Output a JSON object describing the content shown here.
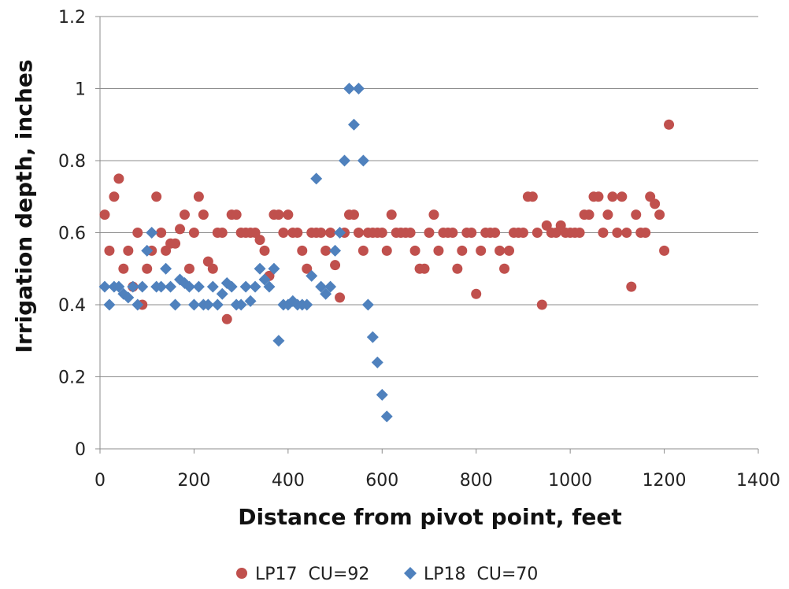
{
  "chart_data": {
    "type": "scatter",
    "xlabel": "Distance from pivot point, feet",
    "ylabel": "Irrigation depth, inches",
    "xlim": [
      0,
      1400
    ],
    "ylim": [
      0,
      1.2
    ],
    "x_ticks": [
      "0",
      "200",
      "400",
      "600",
      "800",
      "1000",
      "1200",
      "1400"
    ],
    "y_ticks": [
      "0",
      "0.2",
      "0.4",
      "0.6",
      "0.8",
      "1",
      "1.2"
    ],
    "grid": "horizontal",
    "legend_position": "bottom",
    "series": [
      {
        "name": "LP17  CU=92",
        "color": "#C0504D",
        "marker": "circle",
        "points": [
          [
            10,
            0.65
          ],
          [
            20,
            0.55
          ],
          [
            30,
            0.7
          ],
          [
            40,
            0.75
          ],
          [
            50,
            0.5
          ],
          [
            60,
            0.55
          ],
          [
            70,
            0.45
          ],
          [
            80,
            0.6
          ],
          [
            90,
            0.4
          ],
          [
            100,
            0.5
          ],
          [
            110,
            0.55
          ],
          [
            120,
            0.7
          ],
          [
            130,
            0.6
          ],
          [
            140,
            0.55
          ],
          [
            150,
            0.57
          ],
          [
            160,
            0.57
          ],
          [
            170,
            0.61
          ],
          [
            180,
            0.65
          ],
          [
            190,
            0.5
          ],
          [
            200,
            0.6
          ],
          [
            210,
            0.7
          ],
          [
            220,
            0.65
          ],
          [
            230,
            0.52
          ],
          [
            240,
            0.5
          ],
          [
            250,
            0.6
          ],
          [
            260,
            0.6
          ],
          [
            270,
            0.36
          ],
          [
            280,
            0.65
          ],
          [
            290,
            0.65
          ],
          [
            300,
            0.6
          ],
          [
            310,
            0.6
          ],
          [
            320,
            0.6
          ],
          [
            330,
            0.6
          ],
          [
            340,
            0.58
          ],
          [
            350,
            0.55
          ],
          [
            360,
            0.48
          ],
          [
            370,
            0.65
          ],
          [
            380,
            0.65
          ],
          [
            390,
            0.6
          ],
          [
            400,
            0.65
          ],
          [
            410,
            0.6
          ],
          [
            420,
            0.6
          ],
          [
            430,
            0.55
          ],
          [
            440,
            0.5
          ],
          [
            450,
            0.6
          ],
          [
            460,
            0.6
          ],
          [
            470,
            0.6
          ],
          [
            480,
            0.55
          ],
          [
            490,
            0.6
          ],
          [
            500,
            0.51
          ],
          [
            510,
            0.42
          ],
          [
            520,
            0.6
          ],
          [
            530,
            0.65
          ],
          [
            540,
            0.65
          ],
          [
            550,
            0.6
          ],
          [
            560,
            0.55
          ],
          [
            570,
            0.6
          ],
          [
            580,
            0.6
          ],
          [
            590,
            0.6
          ],
          [
            600,
            0.6
          ],
          [
            610,
            0.55
          ],
          [
            620,
            0.65
          ],
          [
            630,
            0.6
          ],
          [
            640,
            0.6
          ],
          [
            650,
            0.6
          ],
          [
            660,
            0.6
          ],
          [
            670,
            0.55
          ],
          [
            680,
            0.5
          ],
          [
            690,
            0.5
          ],
          [
            700,
            0.6
          ],
          [
            710,
            0.65
          ],
          [
            720,
            0.55
          ],
          [
            730,
            0.6
          ],
          [
            740,
            0.6
          ],
          [
            750,
            0.6
          ],
          [
            760,
            0.5
          ],
          [
            770,
            0.55
          ],
          [
            780,
            0.6
          ],
          [
            790,
            0.6
          ],
          [
            800,
            0.43
          ],
          [
            810,
            0.55
          ],
          [
            820,
            0.6
          ],
          [
            830,
            0.6
          ],
          [
            840,
            0.6
          ],
          [
            850,
            0.55
          ],
          [
            860,
            0.5
          ],
          [
            870,
            0.55
          ],
          [
            880,
            0.6
          ],
          [
            890,
            0.6
          ],
          [
            900,
            0.6
          ],
          [
            910,
            0.7
          ],
          [
            920,
            0.7
          ],
          [
            930,
            0.6
          ],
          [
            940,
            0.4
          ],
          [
            950,
            0.62
          ],
          [
            960,
            0.6
          ],
          [
            970,
            0.6
          ],
          [
            980,
            0.62
          ],
          [
            990,
            0.6
          ],
          [
            1000,
            0.6
          ],
          [
            1010,
            0.6
          ],
          [
            1020,
            0.6
          ],
          [
            1030,
            0.65
          ],
          [
            1040,
            0.65
          ],
          [
            1050,
            0.7
          ],
          [
            1060,
            0.7
          ],
          [
            1070,
            0.6
          ],
          [
            1080,
            0.65
          ],
          [
            1090,
            0.7
          ],
          [
            1100,
            0.6
          ],
          [
            1110,
            0.7
          ],
          [
            1120,
            0.6
          ],
          [
            1130,
            0.45
          ],
          [
            1140,
            0.65
          ],
          [
            1150,
            0.6
          ],
          [
            1160,
            0.6
          ],
          [
            1170,
            0.7
          ],
          [
            1180,
            0.68
          ],
          [
            1190,
            0.65
          ],
          [
            1200,
            0.55
          ],
          [
            1210,
            0.9
          ]
        ]
      },
      {
        "name": "LP18  CU=70",
        "color": "#4F81BD",
        "marker": "diamond",
        "points": [
          [
            10,
            0.45
          ],
          [
            20,
            0.4
          ],
          [
            30,
            0.45
          ],
          [
            40,
            0.45
          ],
          [
            50,
            0.43
          ],
          [
            60,
            0.42
          ],
          [
            70,
            0.45
          ],
          [
            80,
            0.4
          ],
          [
            90,
            0.45
          ],
          [
            100,
            0.55
          ],
          [
            110,
            0.6
          ],
          [
            120,
            0.45
          ],
          [
            130,
            0.45
          ],
          [
            140,
            0.5
          ],
          [
            150,
            0.45
          ],
          [
            160,
            0.4
          ],
          [
            170,
            0.47
          ],
          [
            180,
            0.46
          ],
          [
            190,
            0.45
          ],
          [
            200,
            0.4
          ],
          [
            210,
            0.45
          ],
          [
            220,
            0.4
          ],
          [
            230,
            0.4
          ],
          [
            240,
            0.45
          ],
          [
            250,
            0.4
          ],
          [
            260,
            0.43
          ],
          [
            270,
            0.46
          ],
          [
            280,
            0.45
          ],
          [
            290,
            0.4
          ],
          [
            300,
            0.4
          ],
          [
            310,
            0.45
          ],
          [
            320,
            0.41
          ],
          [
            330,
            0.45
          ],
          [
            340,
            0.5
          ],
          [
            350,
            0.47
          ],
          [
            360,
            0.45
          ],
          [
            370,
            0.5
          ],
          [
            380,
            0.3
          ],
          [
            390,
            0.4
          ],
          [
            400,
            0.4
          ],
          [
            410,
            0.41
          ],
          [
            420,
            0.4
          ],
          [
            430,
            0.4
          ],
          [
            440,
            0.4
          ],
          [
            450,
            0.48
          ],
          [
            460,
            0.75
          ],
          [
            470,
            0.45
          ],
          [
            480,
            0.43
          ],
          [
            490,
            0.45
          ],
          [
            500,
            0.55
          ],
          [
            510,
            0.6
          ],
          [
            520,
            0.8
          ],
          [
            530,
            1.0
          ],
          [
            540,
            0.9
          ],
          [
            550,
            1.0
          ],
          [
            560,
            0.8
          ],
          [
            570,
            0.4
          ],
          [
            580,
            0.31
          ],
          [
            590,
            0.24
          ],
          [
            600,
            0.15
          ],
          [
            610,
            0.09
          ]
        ]
      }
    ]
  }
}
